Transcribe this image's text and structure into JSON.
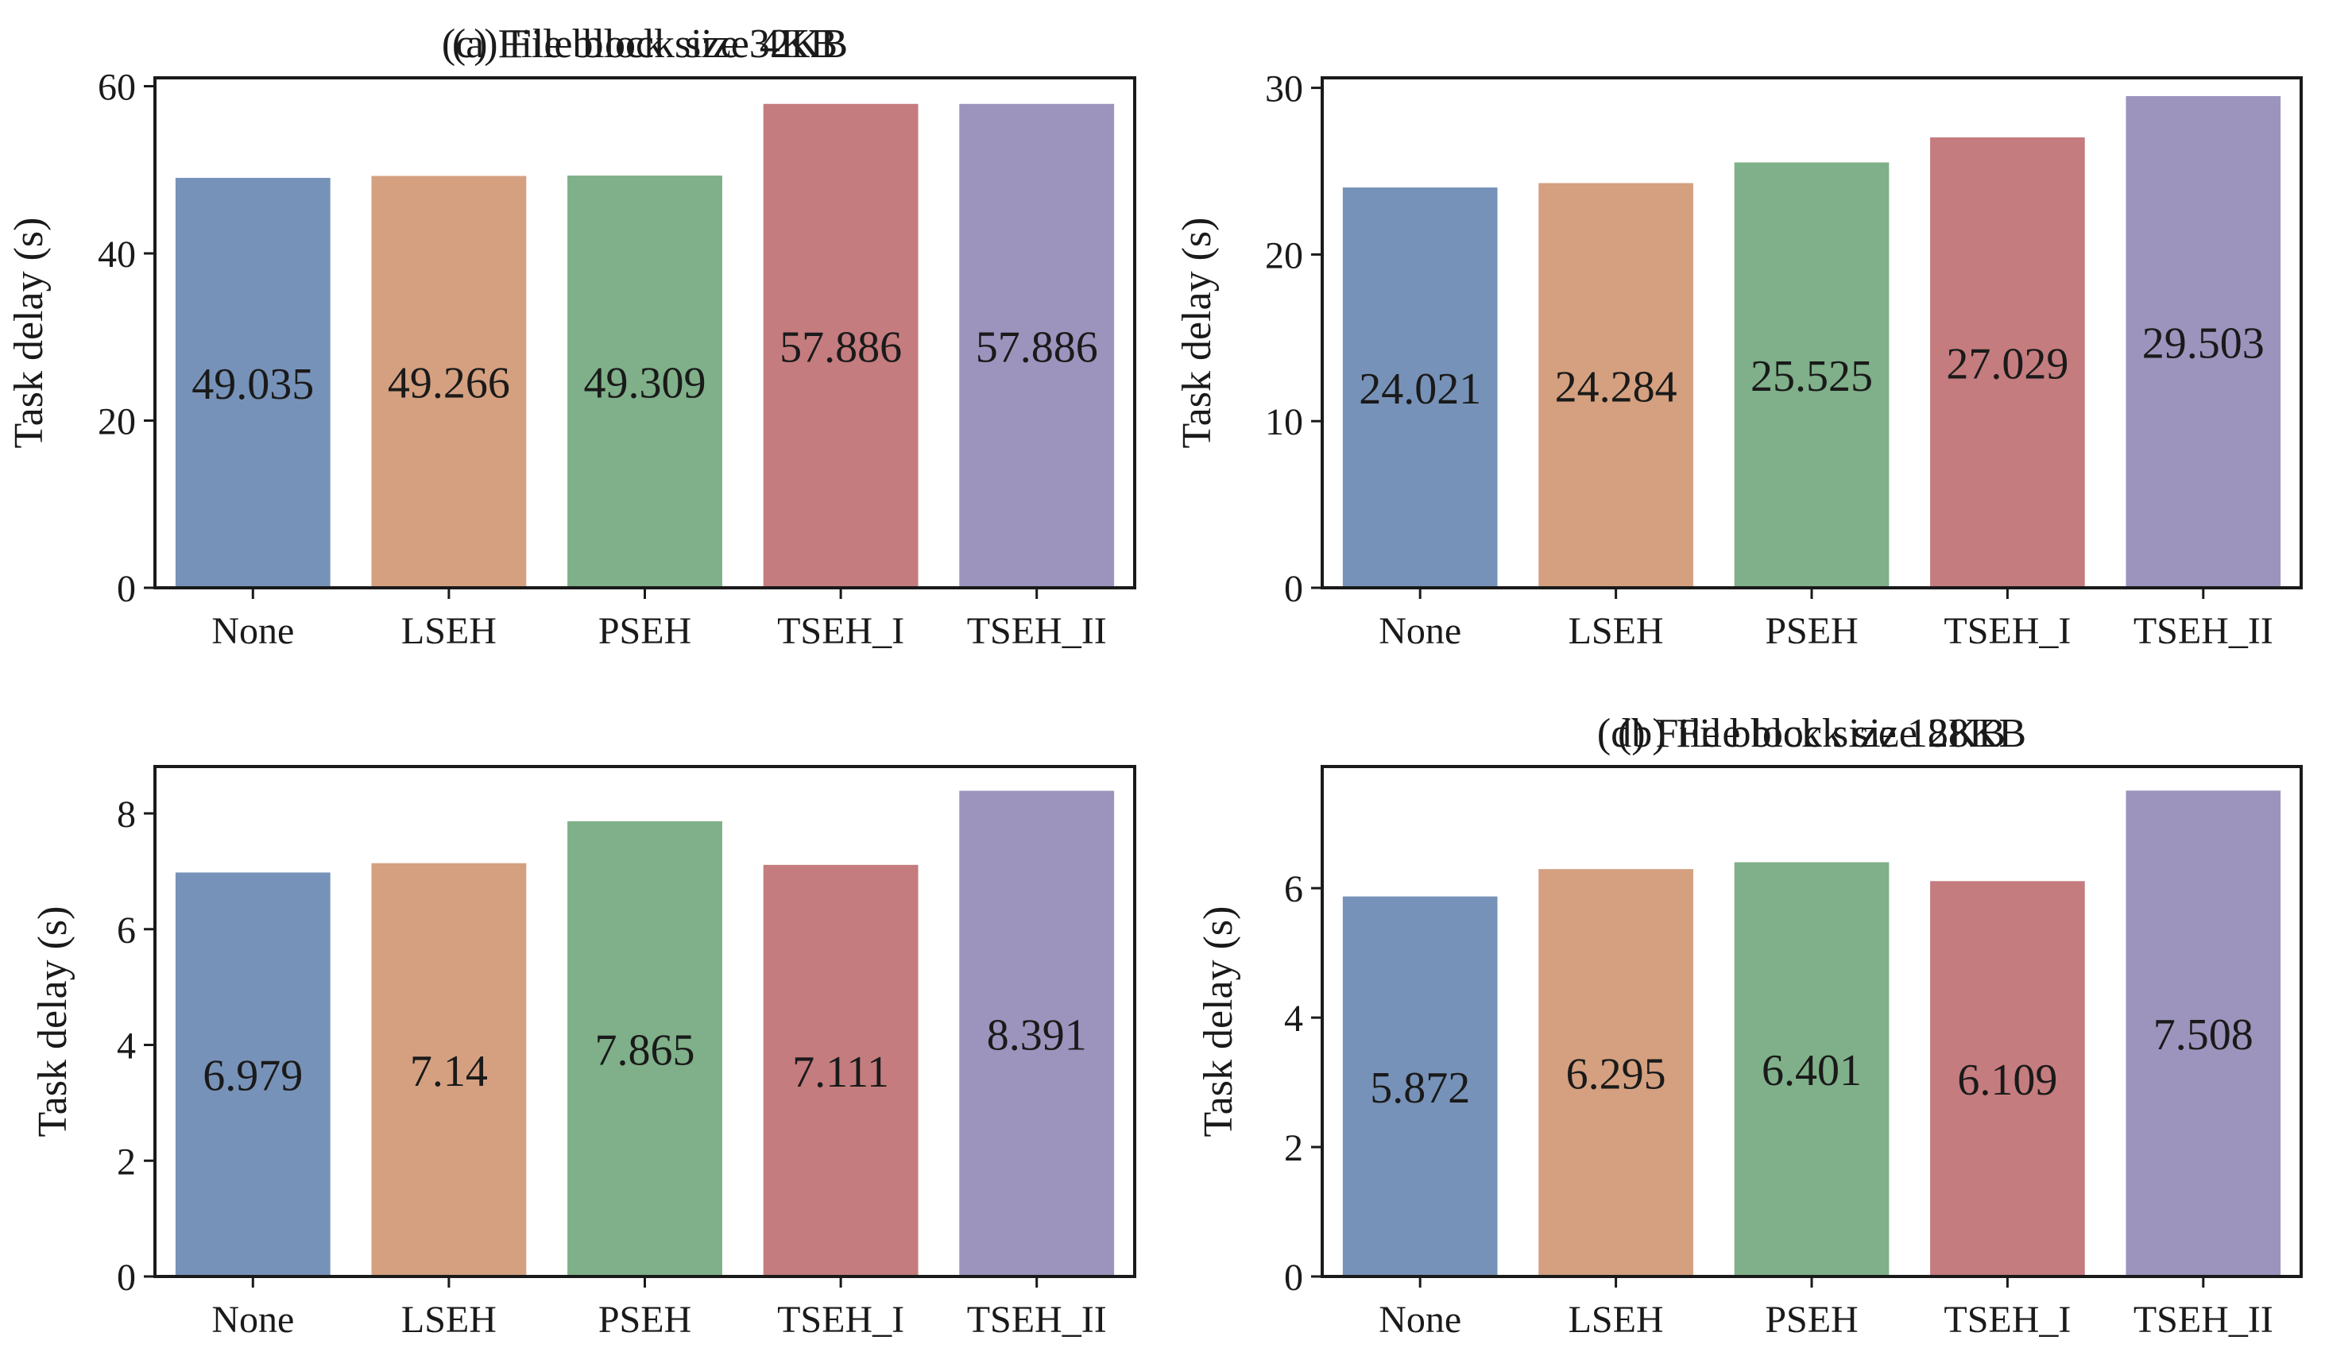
{
  "chart_data": [
    {
      "type": "bar",
      "title": "(a) File block size 4KB",
      "xlabel": "",
      "ylabel": "Task delay (s)",
      "categories": [
        "None",
        "LSEH",
        "PSEH",
        "TSEH_I",
        "TSEH_II"
      ],
      "values": [
        49.035,
        49.266,
        49.309,
        57.886,
        57.886
      ],
      "labels": [
        "49.035",
        "49.266",
        "49.309",
        "57.886",
        "57.886"
      ],
      "ylim": [
        0,
        61
      ],
      "yticks": [
        0,
        20,
        40,
        60
      ],
      "yticks_text": [
        "0",
        "20",
        "40",
        "60"
      ],
      "grid": false,
      "legend": "none"
    },
    {
      "type": "bar",
      "title": "(b) File block size 8KB",
      "xlabel": "",
      "ylabel": "Task delay (s)",
      "categories": [
        "None",
        "LSEH",
        "PSEH",
        "TSEH_I",
        "TSEH_II"
      ],
      "values": [
        24.021,
        24.284,
        25.525,
        27.029,
        29.503
      ],
      "labels": [
        "24.021",
        "24.284",
        "25.525",
        "27.029",
        "29.503"
      ],
      "ylim": [
        0,
        30.6
      ],
      "yticks": [
        0,
        10,
        20,
        30
      ],
      "yticks_text": [
        "0",
        "10",
        "20",
        "30"
      ],
      "grid": false,
      "legend": "none"
    },
    {
      "type": "bar",
      "title": "(c) File block size 32KB",
      "xlabel": "",
      "ylabel": "Task delay (s)",
      "categories": [
        "None",
        "LSEH",
        "PSEH",
        "TSEH_I",
        "TSEH_II"
      ],
      "values": [
        6.979,
        7.14,
        7.865,
        7.111,
        8.391
      ],
      "labels": [
        "6.979",
        "7.14",
        "7.865",
        "7.111",
        "8.391"
      ],
      "ylim": [
        0,
        8.81
      ],
      "yticks": [
        0,
        2,
        4,
        6,
        8
      ],
      "yticks_text": [
        "0",
        "2",
        "4",
        "6",
        "8"
      ],
      "grid": false,
      "legend": "none"
    },
    {
      "type": "bar",
      "title": "(d) File block size 128KB",
      "xlabel": "",
      "ylabel": "Task delay (s)",
      "categories": [
        "None",
        "LSEH",
        "PSEH",
        "TSEH_I",
        "TSEH_II"
      ],
      "values": [
        5.872,
        6.295,
        6.401,
        6.109,
        7.508
      ],
      "labels": [
        "5.872",
        "6.295",
        "6.401",
        "6.109",
        "7.508"
      ],
      "ylim": [
        0,
        7.88
      ],
      "yticks": [
        0,
        2,
        4,
        6
      ],
      "yticks_text": [
        "0",
        "2",
        "4",
        "6"
      ],
      "grid": false,
      "legend": "none"
    }
  ],
  "colors": {
    "None": "#7792b8",
    "LSEH": "#d4a080",
    "PSEH": "#7fb089",
    "TSEH_I": "#c47c7e",
    "TSEH_II": "#9c94bd",
    "axis": "#1a1a1a",
    "text": "#1a1a1a"
  }
}
